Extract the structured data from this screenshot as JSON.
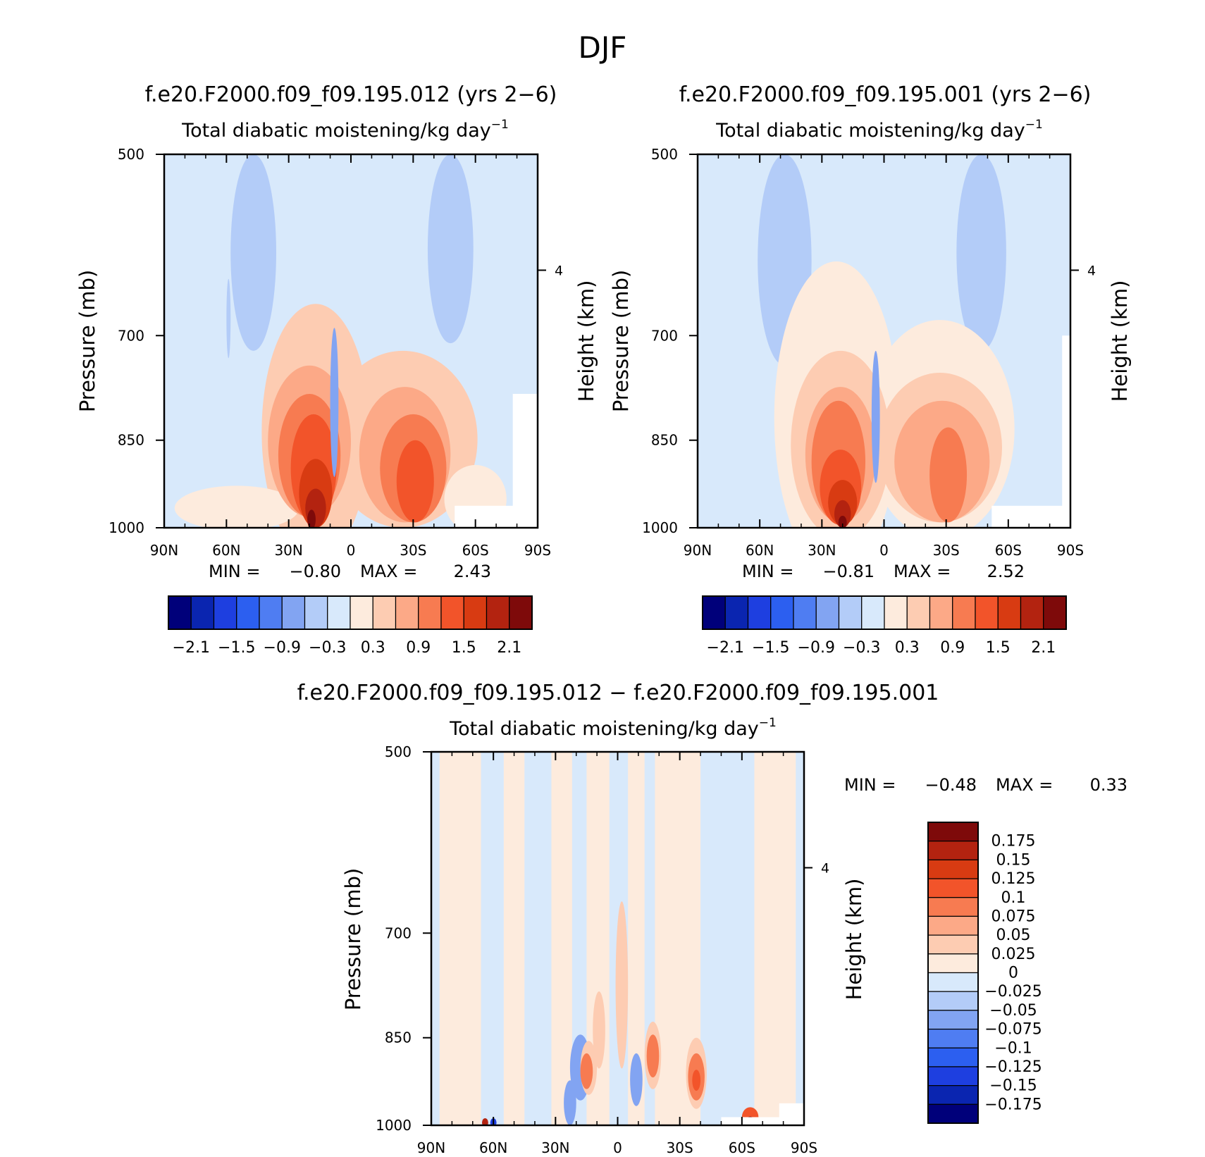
{
  "page": {
    "title": "DJF"
  },
  "colors": {
    "abs_levels": [
      "#00007a",
      "#0a25b0",
      "#1e3fe0",
      "#2c5ff0",
      "#4f7df2",
      "#82a4f2",
      "#b3ccf8",
      "#d8e9fb",
      "#fdebdd",
      "#fdccb2",
      "#fca987",
      "#f77b51",
      "#f2542a",
      "#d83b12",
      "#b32310",
      "#7e0a0a"
    ],
    "diff_levels": [
      "#00007a",
      "#0a25b0",
      "#1e3fe0",
      "#2c5ff0",
      "#4f7df2",
      "#82a4f2",
      "#b3ccf8",
      "#d8e9fb",
      "#fdebdd",
      "#fdccb2",
      "#fca987",
      "#f77b51",
      "#f2542a",
      "#d83b12",
      "#b32310",
      "#7e0a0a"
    ],
    "background_field": "#d8e9fb",
    "missing": "#ffffff"
  },
  "chart_data": [
    {
      "id": "panel-left",
      "type": "heatmap",
      "title": "f.e20.F2000.f09_f09.195.012 (yrs 2−6)",
      "subtitle": "Total diabatic moistening/kg day",
      "subtitle_sup": "−1",
      "ylabel": "Pressure (mb)",
      "ylabel_right": "Height (km)",
      "x_ticks": [
        "90N",
        "60N",
        "30N",
        "0",
        "30S",
        "60S",
        "90S"
      ],
      "y_ticks": [
        "500",
        "700",
        "850",
        "1000"
      ],
      "y_right_ticks": [
        "4"
      ],
      "xlim": [
        90,
        -90
      ],
      "ylim_mb": [
        1000,
        500
      ],
      "stats": {
        "min_label": "MIN =",
        "min": "−0.80",
        "max_label": "MAX =",
        "max": "2.43"
      },
      "colorbar_ticks": [
        "−2.1",
        "−1.5",
        "−0.9",
        "−0.3",
        "0.3",
        "0.9",
        "1.5",
        "2.1"
      ],
      "blobs": [
        {
          "lat": 47,
          "p": 610,
          "rlat": 11,
          "rp": 110,
          "level": 6
        },
        {
          "lat": 59,
          "p": 680,
          "rlat": 1,
          "rp": 50,
          "level": 6
        },
        {
          "lat": -48,
          "p": 600,
          "rlat": 11,
          "rp": 110,
          "level": 6
        },
        {
          "lat": 17,
          "p": 860,
          "rlat": 26,
          "rp": 200,
          "level": 9
        },
        {
          "lat": -25,
          "p": 860,
          "rlat": 36,
          "rp": 140,
          "level": 9
        },
        {
          "lat": -60,
          "p": 950,
          "rlat": 15,
          "rp": 60,
          "level": 8
        },
        {
          "lat": 55,
          "p": 965,
          "rlat": 30,
          "rp": 40,
          "level": 8
        },
        {
          "lat": 20,
          "p": 860,
          "rlat": 20,
          "rp": 120,
          "level": 10
        },
        {
          "lat": -26,
          "p": 880,
          "rlat": 22,
          "rp": 110,
          "level": 10
        },
        {
          "lat": 20,
          "p": 880,
          "rlat": 15,
          "rp": 100,
          "level": 11
        },
        {
          "lat": -30,
          "p": 900,
          "rlat": 16,
          "rp": 90,
          "level": 11
        },
        {
          "lat": 18,
          "p": 900,
          "rlat": 11,
          "rp": 90,
          "level": 12
        },
        {
          "lat": -31,
          "p": 920,
          "rlat": 9,
          "rp": 70,
          "level": 12
        },
        {
          "lat": 17,
          "p": 940,
          "rlat": 8,
          "rp": 60,
          "level": 13
        },
        {
          "lat": 17,
          "p": 965,
          "rlat": 5,
          "rp": 35,
          "level": 14
        },
        {
          "lat": 19,
          "p": 985,
          "rlat": 2,
          "rp": 18,
          "level": 15
        },
        {
          "lat": 8,
          "p": 800,
          "rlat": 2,
          "rp": 110,
          "level": 5
        }
      ],
      "missing_boxes": [
        {
          "lat1": -50,
          "lat2": -90,
          "p1": 960,
          "p2": 1000
        },
        {
          "lat1": -78,
          "lat2": -90,
          "p1": 780,
          "p2": 1000
        }
      ]
    },
    {
      "id": "panel-right",
      "type": "heatmap",
      "title": "f.e20.F2000.f09_f09.195.001 (yrs 2−6)",
      "subtitle": "Total diabatic moistening/kg day",
      "subtitle_sup": "−1",
      "ylabel": "Pressure (mb)",
      "ylabel_right": "Height (km)",
      "x_ticks": [
        "90N",
        "60N",
        "30N",
        "0",
        "30S",
        "60S",
        "90S"
      ],
      "y_ticks": [
        "500",
        "700",
        "850",
        "1000"
      ],
      "y_right_ticks": [
        "4"
      ],
      "xlim": [
        90,
        -90
      ],
      "ylim_mb": [
        1000,
        500
      ],
      "stats": {
        "min_label": "MIN =",
        "min": "−0.81",
        "max_label": "MAX =",
        "max": "2.52"
      },
      "colorbar_ticks": [
        "−2.1",
        "−1.5",
        "−0.9",
        "−0.3",
        "0.3",
        "0.9",
        "1.5",
        "2.1"
      ],
      "blobs": [
        {
          "lat": 48,
          "p": 620,
          "rlat": 13,
          "rp": 120,
          "level": 6
        },
        {
          "lat": -47,
          "p": 600,
          "rlat": 12,
          "rp": 120,
          "level": 6
        },
        {
          "lat": 23,
          "p": 850,
          "rlat": 30,
          "rp": 240,
          "level": 8
        },
        {
          "lat": -27,
          "p": 850,
          "rlat": 36,
          "rp": 170,
          "level": 8
        },
        {
          "lat": 21,
          "p": 870,
          "rlat": 24,
          "rp": 150,
          "level": 9
        },
        {
          "lat": -27,
          "p": 870,
          "rlat": 30,
          "rp": 120,
          "level": 9
        },
        {
          "lat": 21,
          "p": 880,
          "rlat": 17,
          "rp": 110,
          "level": 10
        },
        {
          "lat": -28,
          "p": 890,
          "rlat": 23,
          "rp": 100,
          "level": 10
        },
        {
          "lat": 22,
          "p": 890,
          "rlat": 13,
          "rp": 100,
          "level": 11
        },
        {
          "lat": -31,
          "p": 910,
          "rlat": 9,
          "rp": 80,
          "level": 11
        },
        {
          "lat": 21,
          "p": 930,
          "rlat": 10,
          "rp": 65,
          "level": 12
        },
        {
          "lat": 20,
          "p": 955,
          "rlat": 7,
          "rp": 40,
          "level": 13
        },
        {
          "lat": 20,
          "p": 975,
          "rlat": 4,
          "rp": 25,
          "level": 14
        },
        {
          "lat": 20,
          "p": 990,
          "rlat": 2,
          "rp": 12,
          "level": 15
        },
        {
          "lat": 4,
          "p": 820,
          "rlat": 2,
          "rp": 100,
          "level": 5
        }
      ],
      "missing_boxes": [
        {
          "lat1": -52,
          "lat2": -90,
          "p1": 960,
          "p2": 1000
        },
        {
          "lat1": -86,
          "lat2": -90,
          "p1": 700,
          "p2": 1000
        }
      ]
    },
    {
      "id": "panel-diff",
      "type": "heatmap",
      "title": "f.e20.F2000.f09_f09.195.012 − f.e20.F2000.f09_f09.195.001",
      "subtitle": "Total diabatic moistening/kg day",
      "subtitle_sup": "−1",
      "ylabel": "Pressure (mb)",
      "ylabel_right": "Height (km)",
      "x_ticks": [
        "90N",
        "60N",
        "30N",
        "0",
        "30S",
        "60S",
        "90S"
      ],
      "y_ticks": [
        "500",
        "700",
        "850",
        "1000"
      ],
      "y_right_ticks": [
        "4"
      ],
      "xlim": [
        90,
        -90
      ],
      "ylim_mb": [
        1000,
        500
      ],
      "stats": {
        "min_label": "MIN =",
        "min": "−0.48",
        "max_label": "MAX =",
        "max": "0.33"
      },
      "colorbar_ticks": [
        "0.175",
        "0.15",
        "0.125",
        "0.1",
        "0.075",
        "0.05",
        "0.025",
        "0",
        "−0.025",
        "−0.05",
        "−0.075",
        "−0.1",
        "−0.125",
        "−0.15",
        "−0.175"
      ],
      "stripes": [
        {
          "lat1": 86,
          "lat2": 66,
          "level": 8
        },
        {
          "lat1": 55,
          "lat2": 45,
          "level": 8
        },
        {
          "lat1": 32,
          "lat2": 22,
          "level": 8
        },
        {
          "lat1": 15,
          "lat2": 4,
          "level": 8
        },
        {
          "lat1": -5,
          "lat2": -13,
          "level": 8
        },
        {
          "lat1": -18,
          "lat2": -40,
          "level": 8
        },
        {
          "lat1": -66,
          "lat2": -86,
          "level": 8
        }
      ],
      "blobs": [
        {
          "lat": 18,
          "p": 900,
          "rlat": 5,
          "rp": 55,
          "level": 5
        },
        {
          "lat": 23,
          "p": 960,
          "rlat": 3,
          "rp": 40,
          "level": 5
        },
        {
          "lat": -9,
          "p": 920,
          "rlat": 3,
          "rp": 45,
          "level": 5
        },
        {
          "lat": 9,
          "p": 840,
          "rlat": 3,
          "rp": 60,
          "level": 9
        },
        {
          "lat": -2,
          "p": 780,
          "rlat": 3,
          "rp": 120,
          "level": 9
        },
        {
          "lat": 14,
          "p": 900,
          "rlat": 4,
          "rp": 45,
          "level": 9
        },
        {
          "lat": -17,
          "p": 880,
          "rlat": 4,
          "rp": 55,
          "level": 9
        },
        {
          "lat": -38,
          "p": 910,
          "rlat": 5,
          "rp": 60,
          "level": 9
        },
        {
          "lat": 15,
          "p": 905,
          "rlat": 3,
          "rp": 30,
          "level": 11
        },
        {
          "lat": -17,
          "p": 880,
          "rlat": 3,
          "rp": 35,
          "level": 11
        },
        {
          "lat": -38,
          "p": 915,
          "rlat": 4,
          "rp": 40,
          "level": 11
        },
        {
          "lat": -38,
          "p": 920,
          "rlat": 2,
          "rp": 18,
          "level": 12
        },
        {
          "lat": -64,
          "p": 985,
          "rlat": 4,
          "rp": 18,
          "level": 12
        },
        {
          "lat": -64,
          "p": 992,
          "rlat": 2,
          "rp": 8,
          "level": 15
        },
        {
          "lat": 64,
          "p": 995,
          "rlat": 1.5,
          "rp": 8,
          "level": 14
        },
        {
          "lat": 60,
          "p": 995,
          "rlat": 1.5,
          "rp": 8,
          "level": 2
        }
      ],
      "missing_boxes": [
        {
          "lat1": -50,
          "lat2": -90,
          "p1": 985,
          "p2": 1000
        },
        {
          "lat1": -78,
          "lat2": -90,
          "p1": 960,
          "p2": 1000
        }
      ]
    }
  ]
}
